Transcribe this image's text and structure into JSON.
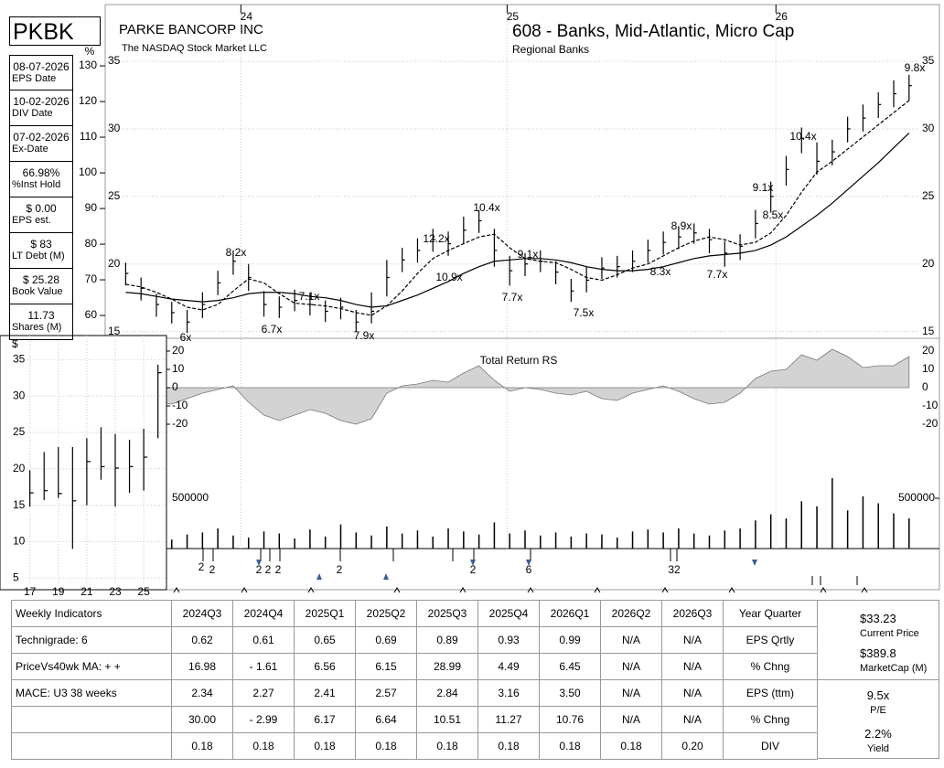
{
  "header": {
    "ticker": "PKBK",
    "company": "PARKE BANCORP INC",
    "exchange": "The NASDAQ Stock Market LLC",
    "group": "608 - Banks, Mid-Atlantic, Micro Cap",
    "industry": "Regional Banks"
  },
  "sidebar": [
    {
      "value": "08-07-2026",
      "label": "EPS Date"
    },
    {
      "value": "10-02-2026",
      "label": "DIV Date"
    },
    {
      "value": "07-02-2026",
      "label": "Ex-Date"
    },
    {
      "value": "66.98%",
      "label": "%Inst Hold"
    },
    {
      "value": "$ 0.00",
      "label": "EPS est."
    },
    {
      "value": "$ 83",
      "label": "LT Debt (M)"
    },
    {
      "value": "$ 25.28",
      "label": "Book Value"
    },
    {
      "value": "11.73",
      "label": "Shares (M)"
    }
  ],
  "chart_data": [
    {
      "type": "ohlc",
      "x": [
        0,
        3,
        6,
        9,
        12,
        15,
        18,
        21,
        24,
        27,
        30,
        33,
        36,
        39,
        42,
        45,
        48,
        51,
        54,
        57,
        60,
        63,
        66,
        69,
        72,
        75,
        78,
        81,
        84,
        87,
        90,
        93,
        96,
        99,
        102,
        105,
        108,
        111,
        114,
        117,
        120,
        123,
        126,
        129,
        132,
        135,
        138,
        141,
        144,
        147,
        150,
        153
      ],
      "high": [
        20.1,
        19.0,
        17.8,
        17.2,
        16.6,
        17.9,
        19.5,
        21.0,
        20.0,
        18.0,
        17.6,
        18.1,
        17.8,
        17.3,
        17.5,
        16.6,
        17.9,
        20.3,
        21.2,
        21.9,
        22.6,
        22.4,
        23.5,
        24.0,
        22.6,
        20.6,
        20.8,
        21.0,
        20.2,
        18.9,
        19.8,
        20.5,
        20.6,
        21.0,
        21.8,
        22.4,
        22.8,
        23.0,
        22.6,
        21.7,
        22.2,
        24.0,
        26.1,
        28.0,
        30.1,
        29.0,
        29.2,
        30.9,
        31.8,
        32.7,
        33.6,
        34.0
      ],
      "low": [
        18.4,
        17.3,
        16.1,
        15.6,
        14.9,
        16.0,
        17.7,
        19.2,
        18.0,
        16.1,
        16.0,
        16.5,
        16.2,
        15.7,
        15.9,
        15.0,
        15.6,
        17.6,
        19.4,
        20.1,
        20.9,
        20.6,
        21.5,
        22.3,
        19.8,
        18.4,
        19.1,
        19.4,
        18.5,
        17.2,
        17.9,
        18.9,
        19.0,
        19.4,
        20.1,
        20.7,
        21.1,
        21.5,
        20.8,
        19.8,
        20.3,
        21.9,
        23.8,
        25.8,
        28.2,
        26.6,
        27.3,
        29.0,
        29.8,
        30.8,
        31.6,
        32.1
      ],
      "close": [
        19.3,
        18.2,
        17.0,
        16.4,
        15.7,
        17.0,
        18.6,
        20.2,
        19.0,
        17.0,
        16.8,
        17.3,
        17.0,
        16.5,
        16.8,
        15.7,
        16.5,
        19.0,
        20.3,
        21.0,
        21.8,
        21.5,
        22.5,
        23.2,
        21.0,
        19.5,
        20.0,
        20.2,
        19.4,
        18.0,
        18.8,
        19.7,
        19.8,
        20.2,
        21.0,
        21.6,
        22.0,
        22.3,
        21.8,
        20.8,
        21.3,
        23.0,
        25.0,
        27.0,
        29.3,
        27.6,
        28.3,
        30.0,
        30.8,
        31.8,
        32.6,
        33.2
      ],
      "lines": [
        {
          "dash": true,
          "values": [
            18.5,
            18.3,
            17.9,
            17.4,
            16.8,
            16.6,
            17.0,
            18.0,
            18.9,
            18.6,
            17.8,
            17.1,
            17.0,
            16.9,
            16.7,
            16.4,
            16.2,
            16.9,
            18.0,
            19.3,
            20.4,
            21.0,
            21.5,
            22.0,
            22.2,
            21.2,
            20.4,
            20.2,
            20.1,
            19.6,
            19.0,
            18.8,
            19.2,
            19.7,
            20.0,
            20.6,
            21.2,
            21.7,
            22.0,
            21.8,
            21.4,
            21.6,
            22.3,
            23.6,
            25.3,
            26.8,
            27.6,
            28.5,
            29.4,
            30.3,
            31.2,
            32.1
          ]
        },
        {
          "dash": false,
          "values": [
            17.9,
            17.8,
            17.6,
            17.4,
            17.3,
            17.2,
            17.3,
            17.5,
            17.8,
            17.9,
            17.9,
            17.8,
            17.6,
            17.5,
            17.3,
            17.0,
            16.8,
            16.9,
            17.3,
            17.7,
            18.2,
            18.7,
            19.3,
            19.8,
            20.2,
            20.3,
            20.4,
            20.4,
            20.3,
            20.1,
            19.8,
            19.6,
            19.5,
            19.5,
            19.6,
            19.8,
            20.1,
            20.4,
            20.6,
            20.7,
            20.8,
            21.0,
            21.4,
            22.0,
            22.8,
            23.6,
            24.5,
            25.5,
            26.5,
            27.5,
            28.6,
            29.7
          ]
        }
      ],
      "color": "#000000",
      "xlim": [
        -4,
        155
      ],
      "xticks": [
        {
          "value": 22.5,
          "label": "24"
        },
        {
          "value": 74.5,
          "label": "25"
        },
        {
          "value": 127,
          "label": "26"
        }
      ],
      "ylim": [
        14.5,
        39.2
      ],
      "yticks": [
        15,
        20,
        25,
        30,
        35
      ],
      "y2label": "%",
      "y2lim": [
        53.6,
        147.2
      ],
      "y2ticks": [
        60,
        70,
        80,
        90,
        100,
        110,
        120,
        130
      ],
      "grid": true,
      "annotations": [
        "6x",
        "8.2x",
        "6.7x",
        "7.1x",
        "7.9x",
        "12.2x",
        "10.9x",
        "10.4x",
        "7.7x",
        "9.1x",
        "7.5x",
        "8.3x",
        "8.9x",
        "7.7x",
        "9.1x",
        "8.5x",
        "10.4x",
        "9.8x"
      ]
    },
    {
      "type": "area",
      "title": "Total Return RS",
      "x": [
        0,
        3,
        6,
        9,
        12,
        15,
        18,
        21,
        24,
        27,
        30,
        33,
        36,
        39,
        42,
        45,
        48,
        51,
        54,
        57,
        60,
        63,
        66,
        69,
        72,
        75,
        78,
        81,
        84,
        87,
        90,
        93,
        96,
        99,
        102,
        105,
        108,
        111,
        114,
        117,
        120,
        123,
        126,
        129,
        132,
        135,
        138,
        141,
        144,
        147,
        150,
        153
      ],
      "values": [
        -4,
        -6,
        -8,
        -9,
        -6,
        -3,
        -1,
        1,
        -8,
        -15,
        -18,
        -15,
        -12,
        -14,
        -18,
        -20,
        -17,
        -3,
        1,
        2,
        4,
        3,
        8,
        12,
        4,
        -2,
        0,
        -1,
        -3,
        -4,
        -2,
        -6,
        -7,
        -3,
        -1,
        1,
        -2,
        -6,
        -9,
        -8,
        -3,
        5,
        9,
        10,
        18,
        15,
        21,
        17,
        11,
        12,
        12,
        17
      ],
      "color": "#d3d3d3",
      "xlim": [
        -4,
        155
      ],
      "ylim": [
        -33,
        25
      ],
      "yticks": [
        -20,
        -10,
        0,
        10,
        20
      ]
    },
    {
      "type": "bar",
      "x": [
        0,
        3,
        6,
        9,
        12,
        15,
        18,
        21,
        24,
        27,
        30,
        33,
        36,
        39,
        42,
        45,
        48,
        51,
        54,
        57,
        60,
        63,
        66,
        69,
        72,
        75,
        78,
        81,
        84,
        87,
        90,
        93,
        96,
        99,
        102,
        105,
        108,
        111,
        114,
        117,
        120,
        123,
        126,
        129,
        132,
        135,
        138,
        141,
        144,
        147,
        150,
        153
      ],
      "values": [
        150000,
        120000,
        180000,
        90000,
        140000,
        160000,
        200000,
        130000,
        110000,
        170000,
        150000,
        100000,
        190000,
        120000,
        240000,
        160000,
        130000,
        220000,
        150000,
        180000,
        120000,
        200000,
        170000,
        140000,
        260000,
        150000,
        180000,
        130000,
        160000,
        120000,
        150000,
        140000,
        110000,
        170000,
        190000,
        160000,
        200000,
        150000,
        130000,
        180000,
        200000,
        280000,
        340000,
        300000,
        470000,
        420000,
        700000,
        380000,
        520000,
        450000,
        350000,
        300000
      ],
      "color": "#000000",
      "xlim": [
        -4,
        155
      ],
      "ylim": [
        0,
        1000000
      ],
      "yticks": [
        500000
      ]
    },
    {
      "type": "ohlc",
      "ylabel": "$",
      "x": [
        17,
        18,
        19,
        20,
        21,
        22,
        23,
        24,
        25,
        26
      ],
      "high": [
        19.8,
        22.3,
        23,
        23,
        24.2,
        25.7,
        24.8,
        24,
        25.5,
        34.3
      ],
      "low": [
        14.8,
        15.7,
        16,
        9,
        15,
        18.5,
        14.8,
        16.7,
        17,
        24.2
      ],
      "close": [
        16.7,
        17,
        16.6,
        15.6,
        21,
        20.3,
        20.1,
        20.3,
        21.6,
        33.2
      ],
      "color": "#000000",
      "xlim": [
        14.9,
        26.6
      ],
      "xticks": [
        17,
        19,
        21,
        23,
        25
      ],
      "ylim": [
        3.4,
        38.3
      ],
      "yticks": [
        5,
        10,
        15,
        20,
        25,
        30,
        35
      ],
      "grid": true
    }
  ],
  "events": [
    "2",
    "2",
    "2",
    "2",
    "2",
    "2",
    "2",
    "6",
    "32"
  ],
  "table": {
    "header": [
      "Weekly Indicators",
      "2024Q3",
      "2024Q4",
      "2025Q1",
      "2025Q2",
      "2025Q3",
      "2025Q4",
      "2026Q1",
      "2026Q2",
      "2026Q3",
      "Year Quarter"
    ],
    "rows": [
      [
        "Technigrade: 6",
        "0.62",
        "0.61",
        "0.65",
        "0.69",
        "0.89",
        "0.93",
        "0.99",
        "N/A",
        "N/A",
        "EPS Qrtly"
      ],
      [
        "PriceVs40wk MA:  + +",
        "16.98",
        "- 1.61",
        "6.56",
        "6.15",
        "28.99",
        "4.49",
        "6.45",
        "N/A",
        "N/A",
        "% Chng"
      ],
      [
        "MACE: U3  38 weeks",
        "2.34",
        "2.27",
        "2.41",
        "2.57",
        "2.84",
        "3.16",
        "3.50",
        "N/A",
        "N/A",
        "EPS (ttm)"
      ],
      [
        null,
        "30.00",
        "- 2.99",
        "6.17",
        "6.64",
        "10.51",
        "11.27",
        "10.76",
        "N/A",
        "N/A",
        "% Chng"
      ],
      [
        null,
        "0.18",
        "0.18",
        "0.18",
        "0.18",
        "0.18",
        "0.18",
        "0.18",
        "0.18",
        "0.20",
        "DIV"
      ]
    ]
  },
  "summary": [
    {
      "value": "$33.23",
      "label": "Current Price"
    },
    {
      "value": "$389.8",
      "label": "MarketCap (M)"
    },
    {
      "value": "9.5x",
      "label": "P/E"
    },
    {
      "value": "2.2%",
      "label": "Yield"
    }
  ]
}
